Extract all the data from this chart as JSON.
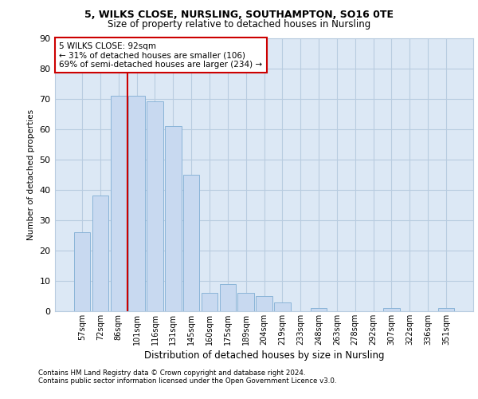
{
  "title_line1": "5, WILKS CLOSE, NURSLING, SOUTHAMPTON, SO16 0TE",
  "title_line2": "Size of property relative to detached houses in Nursling",
  "xlabel": "Distribution of detached houses by size in Nursling",
  "ylabel": "Number of detached properties",
  "categories": [
    "57sqm",
    "72sqm",
    "86sqm",
    "101sqm",
    "116sqm",
    "131sqm",
    "145sqm",
    "160sqm",
    "175sqm",
    "189sqm",
    "204sqm",
    "219sqm",
    "233sqm",
    "248sqm",
    "263sqm",
    "278sqm",
    "292sqm",
    "307sqm",
    "322sqm",
    "336sqm",
    "351sqm"
  ],
  "values": [
    26,
    38,
    71,
    71,
    69,
    61,
    45,
    6,
    9,
    6,
    5,
    3,
    0,
    1,
    0,
    0,
    0,
    1,
    0,
    0,
    1
  ],
  "bar_color": "#c8d9f0",
  "bar_edge_color": "#8ab4d8",
  "grid_color": "#b8cce0",
  "bg_color": "#dce8f5",
  "vline_color": "#cc0000",
  "vline_x": 2.5,
  "annotation_line1": "5 WILKS CLOSE: 92sqm",
  "annotation_line2": "← 31% of detached houses are smaller (106)",
  "annotation_line3": "69% of semi-detached houses are larger (234) →",
  "annotation_box_facecolor": "#ffffff",
  "annotation_box_edgecolor": "#cc0000",
  "ylim_max": 90,
  "yticks": [
    0,
    10,
    20,
    30,
    40,
    50,
    60,
    70,
    80,
    90
  ],
  "footnote1": "Contains HM Land Registry data © Crown copyright and database right 2024.",
  "footnote2": "Contains public sector information licensed under the Open Government Licence v3.0."
}
